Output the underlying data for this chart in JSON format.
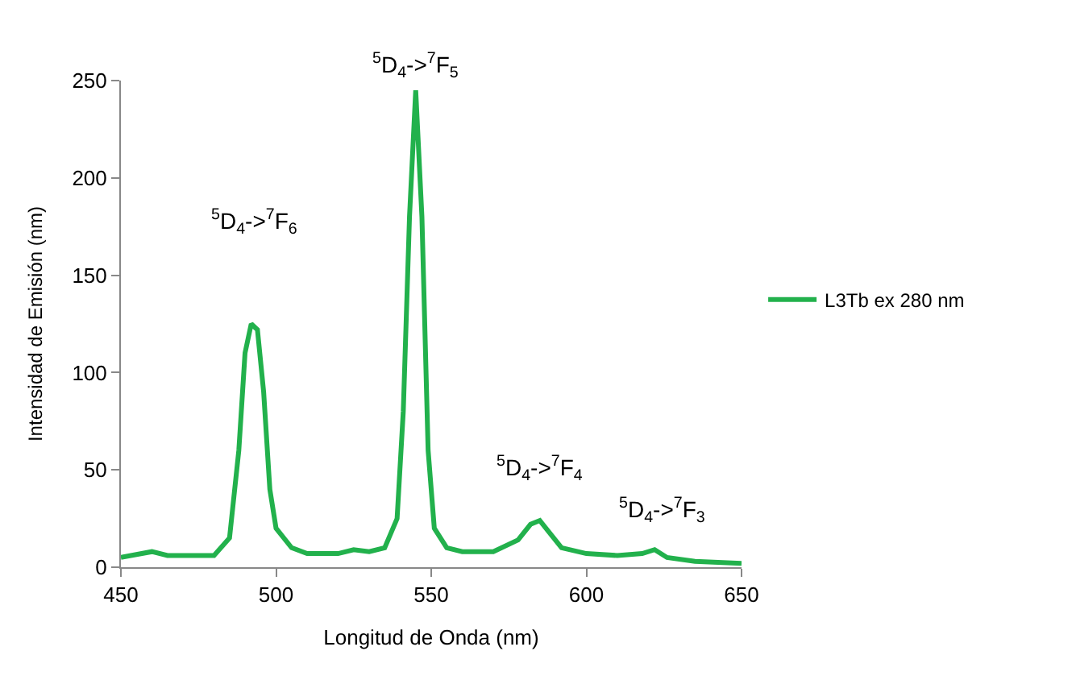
{
  "chart_data": {
    "type": "line",
    "xlabel": "Longitud de Onda (nm)",
    "ylabel": "Intensidad de Emisión (nm)",
    "xlim": [
      450,
      650
    ],
    "xticks": [
      450,
      500,
      550,
      600,
      650
    ],
    "ylim": [
      0,
      250
    ],
    "yticks": [
      0,
      50,
      100,
      150,
      200,
      250
    ],
    "legend": "right",
    "marker": "none",
    "line_style": "solid",
    "series": [
      {
        "name": "L3Tb ex 280 nm",
        "color": "#22b14c",
        "x": [
          450,
          460,
          465,
          480,
          485,
          488,
          490,
          492,
          494,
          496,
          498,
          500,
          505,
          510,
          520,
          525,
          530,
          535,
          539,
          541,
          543,
          545,
          547,
          549,
          551,
          555,
          560,
          570,
          578,
          582,
          585,
          588,
          592,
          600,
          610,
          618,
          622,
          626,
          635,
          650
        ],
        "values": [
          5,
          8,
          6,
          6,
          15,
          60,
          110,
          125,
          122,
          90,
          40,
          20,
          10,
          7,
          7,
          9,
          8,
          10,
          25,
          80,
          180,
          245,
          180,
          60,
          20,
          10,
          8,
          8,
          14,
          22,
          24,
          18,
          10,
          7,
          6,
          7,
          9,
          5,
          3,
          2
        ]
      }
    ],
    "annotations": [
      "$^{5}$D$_{4}$->$^{7}$F$_{6}$",
      {
        "text": "$^{5}$D$_{4}$->$^{7}$F$_{5}$",
        "x": 545,
        "y": 245
      },
      {
        "text": "$^{5}$D$_{4}$->$^{7}$F$_{4}$",
        "x": 585,
        "y": 24
      },
      {
        "text": "$^{5}$D$_{4}$->$^{7}$F$_{3}$",
        "x": 622,
        "y": 9
      }
    ]
  }
}
